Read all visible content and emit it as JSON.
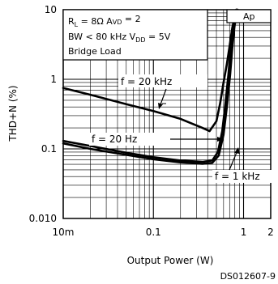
{
  "chart_data": {
    "type": "line",
    "xlabel": "Output Power (W)",
    "ylabel": "THD+N (%)",
    "x_scale": "log",
    "y_scale": "log",
    "xlim": [
      0.01,
      2
    ],
    "ylim": [
      0.01,
      10
    ],
    "x_ticks": [
      {
        "value": 0.01,
        "label": "10m"
      },
      {
        "value": 0.1,
        "label": "0.1"
      },
      {
        "value": 1,
        "label": "1"
      },
      {
        "value": 2,
        "label": "2"
      }
    ],
    "y_ticks": [
      {
        "value": 0.01,
        "label": "0.010"
      },
      {
        "value": 0.1,
        "label": "0.1"
      },
      {
        "value": 1,
        "label": "1"
      },
      {
        "value": 10,
        "label": "10"
      }
    ],
    "grid": true,
    "conditions": {
      "line1_a": "R",
      "line1_a_sub": "L",
      "line1_b": " = 8Ω   A",
      "line1_b_sub": "VD",
      "line1_c": " = 2",
      "line2_a": "BW < 80 kHz   V",
      "line2_a_sub": "DD",
      "line2_b": " = 5V",
      "line3": "Bridge Load"
    },
    "corner_label": "Ap",
    "footer": "DS012607-9",
    "series": [
      {
        "name": "f = 20 kHz",
        "points": [
          [
            0.01,
            0.75
          ],
          [
            0.02,
            0.6
          ],
          [
            0.05,
            0.44
          ],
          [
            0.1,
            0.35
          ],
          [
            0.2,
            0.27
          ],
          [
            0.35,
            0.2
          ],
          [
            0.42,
            0.18
          ],
          [
            0.5,
            0.25
          ],
          [
            0.55,
            0.45
          ],
          [
            0.6,
            0.9
          ],
          [
            0.65,
            1.6
          ],
          [
            0.7,
            3.0
          ],
          [
            0.75,
            5.5
          ],
          [
            0.8,
            8.0
          ],
          [
            0.84,
            10.0
          ]
        ]
      },
      {
        "name": "f = 20 Hz",
        "points": [
          [
            0.01,
            0.13
          ],
          [
            0.02,
            0.11
          ],
          [
            0.05,
            0.088
          ],
          [
            0.1,
            0.076
          ],
          [
            0.2,
            0.068
          ],
          [
            0.35,
            0.065
          ],
          [
            0.45,
            0.068
          ],
          [
            0.52,
            0.09
          ],
          [
            0.58,
            0.18
          ],
          [
            0.63,
            0.45
          ],
          [
            0.68,
            1.2
          ],
          [
            0.72,
            2.8
          ],
          [
            0.76,
            5.5
          ],
          [
            0.8,
            8.5
          ],
          [
            0.83,
            10.0
          ]
        ]
      },
      {
        "name": "f = 1 kHz",
        "points": [
          [
            0.01,
            0.12
          ],
          [
            0.02,
            0.1
          ],
          [
            0.05,
            0.082
          ],
          [
            0.1,
            0.071
          ],
          [
            0.2,
            0.064
          ],
          [
            0.35,
            0.061
          ],
          [
            0.45,
            0.063
          ],
          [
            0.53,
            0.08
          ],
          [
            0.6,
            0.16
          ],
          [
            0.66,
            0.45
          ],
          [
            0.71,
            1.2
          ],
          [
            0.75,
            2.8
          ],
          [
            0.79,
            5.5
          ],
          [
            0.83,
            8.5
          ],
          [
            0.86,
            10.0
          ]
        ]
      }
    ]
  }
}
